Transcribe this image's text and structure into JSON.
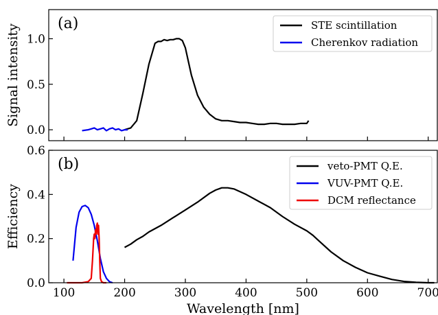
{
  "chart_data": [
    {
      "type": "line",
      "panel_label": "(a)",
      "xlabel": "",
      "ylabel": "Signal intensity",
      "xlim": [
        75,
        715
      ],
      "ylim": [
        -0.12,
        1.32
      ],
      "yticks": [
        0.0,
        0.5,
        1.0
      ],
      "ytick_labels": [
        "0.0",
        "0.5",
        "1.0"
      ],
      "xticks": [
        100,
        200,
        300,
        400,
        500,
        600,
        700
      ],
      "xtick_labels_shown": false,
      "legend_position": "top-right",
      "grid": false,
      "series": [
        {
          "name": "STE scintillation",
          "color": "#000000",
          "x": [
            200,
            210,
            220,
            230,
            240,
            250,
            255,
            260,
            265,
            270,
            275,
            280,
            285,
            290,
            295,
            300,
            305,
            310,
            320,
            330,
            340,
            350,
            360,
            370,
            380,
            390,
            400,
            410,
            420,
            430,
            440,
            450,
            460,
            470,
            480,
            490,
            500,
            503
          ],
          "y": [
            0.0,
            0.02,
            0.1,
            0.4,
            0.72,
            0.95,
            0.97,
            0.97,
            0.99,
            0.98,
            0.99,
            0.99,
            1.0,
            1.0,
            0.98,
            0.9,
            0.75,
            0.6,
            0.38,
            0.25,
            0.17,
            0.12,
            0.1,
            0.1,
            0.09,
            0.08,
            0.08,
            0.07,
            0.06,
            0.06,
            0.07,
            0.07,
            0.06,
            0.06,
            0.06,
            0.07,
            0.07,
            0.1
          ]
        },
        {
          "name": "Cherenkov radiation",
          "color": "#0000ee",
          "x": [
            130,
            140,
            145,
            150,
            155,
            160,
            165,
            170,
            175,
            180,
            185,
            190,
            195,
            200,
            205
          ],
          "y": [
            -0.01,
            0.0,
            0.01,
            0.02,
            0.0,
            0.01,
            0.02,
            -0.01,
            0.01,
            0.02,
            0.0,
            0.01,
            -0.01,
            0.0,
            0.0
          ]
        }
      ]
    },
    {
      "type": "line",
      "panel_label": "(b)",
      "xlabel": "Wavelength [nm]",
      "ylabel": "Efficiency",
      "xlim": [
        75,
        715
      ],
      "ylim": [
        0.0,
        0.6
      ],
      "yticks": [
        0.0,
        0.2,
        0.4,
        0.6
      ],
      "ytick_labels": [
        "0.0",
        "0.2",
        "0.4",
        "0.6"
      ],
      "xticks": [
        100,
        200,
        300,
        400,
        500,
        600,
        700
      ],
      "xtick_labels": [
        "100",
        "200",
        "300",
        "400",
        "500",
        "600",
        "700"
      ],
      "legend_position": "top-right",
      "grid": false,
      "series": [
        {
          "name": "veto-PMT Q.E.",
          "color": "#000000",
          "x": [
            200,
            210,
            220,
            230,
            240,
            260,
            280,
            300,
            320,
            340,
            350,
            360,
            370,
            380,
            400,
            420,
            440,
            460,
            480,
            500,
            510,
            520,
            540,
            560,
            580,
            600,
            620,
            640,
            660,
            680,
            700,
            710
          ],
          "y": [
            0.16,
            0.175,
            0.195,
            0.21,
            0.23,
            0.26,
            0.295,
            0.33,
            0.365,
            0.405,
            0.42,
            0.43,
            0.43,
            0.425,
            0.4,
            0.37,
            0.34,
            0.3,
            0.265,
            0.235,
            0.215,
            0.19,
            0.14,
            0.1,
            0.07,
            0.045,
            0.03,
            0.015,
            0.006,
            0.002,
            0.0,
            0.0
          ]
        },
        {
          "name": "VUV-PMT Q.E.",
          "color": "#0000ee",
          "x": [
            115,
            120,
            125,
            130,
            135,
            140,
            145,
            150,
            155,
            160,
            165,
            170,
            175,
            180
          ],
          "y": [
            0.1,
            0.25,
            0.32,
            0.345,
            0.35,
            0.34,
            0.31,
            0.26,
            0.19,
            0.11,
            0.05,
            0.02,
            0.005,
            0.0
          ]
        },
        {
          "name": "DCM reflectance",
          "color": "#ee0000",
          "x": [
            105,
            130,
            140,
            145,
            147,
            149,
            150,
            151,
            152,
            153,
            154,
            155,
            156,
            157,
            158,
            159,
            160,
            162,
            165,
            170
          ],
          "y": [
            0.0,
            0.0,
            0.005,
            0.02,
            0.1,
            0.2,
            0.22,
            0.2,
            0.24,
            0.22,
            0.26,
            0.27,
            0.22,
            0.26,
            0.2,
            0.1,
            0.02,
            0.005,
            0.0,
            0.0
          ]
        }
      ]
    }
  ]
}
